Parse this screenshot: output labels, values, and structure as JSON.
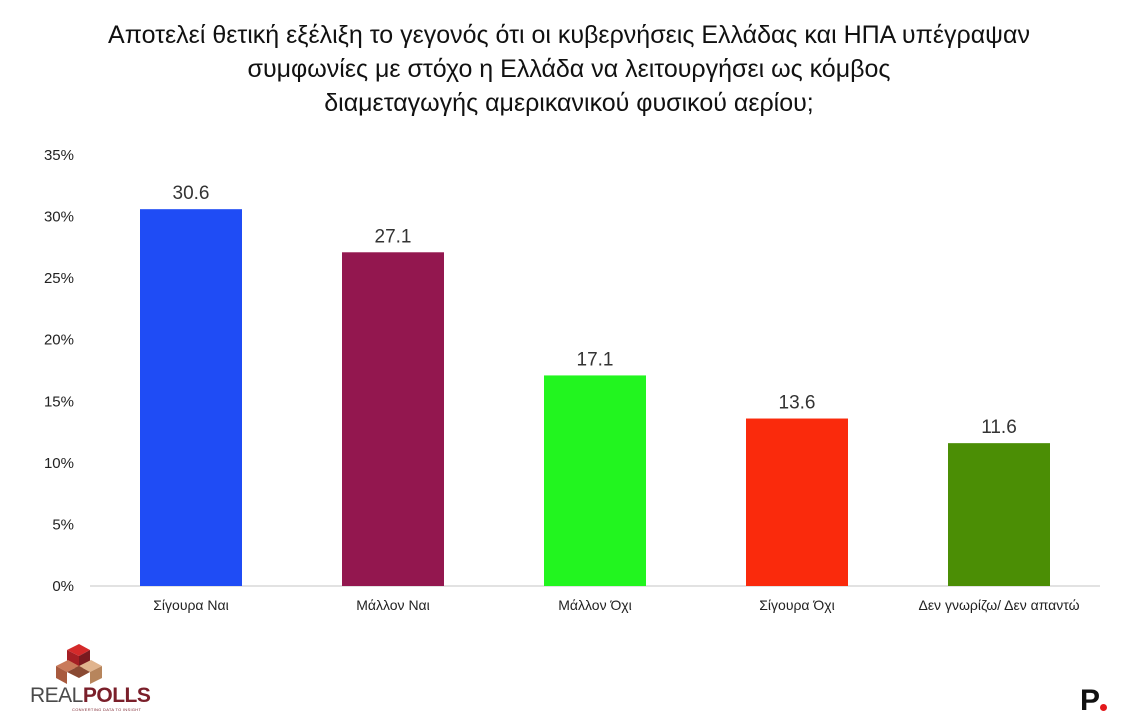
{
  "title_lines": [
    "Αποτελεί θετική εξέλιξη το γεγονός ότι οι κυβερνήσεις Ελλάδας και ΗΠΑ υπέγραψαν",
    "συμφωνίες με στόχο η Ελλάδα να λειτουργήσει ως κόμβος",
    "διαμεταγωγής αμερικανικού φυσικού αερίου;"
  ],
  "chart_data": {
    "type": "bar",
    "title": "Αποτελεί θετική εξέλιξη το γεγονός ότι οι κυβερνήσεις Ελλάδας και ΗΠΑ υπέγραψαν συμφωνίες με στόχο η Ελλάδα να λειτουργήσει ως κόμβος διαμεταγωγής αμερικανικού φυσικού αερίου;",
    "categories": [
      "Σίγουρα Ναι",
      "Μάλλον Ναι",
      "Μάλλον Όχι",
      "Σίγουρα Όχι",
      "Δεν γνωρίζω/ Δεν απαντώ"
    ],
    "values": [
      30.6,
      27.1,
      17.1,
      13.6,
      11.6
    ],
    "value_labels": [
      "30.6",
      "27.1",
      "17.1",
      "13.6",
      "11.6"
    ],
    "colors": [
      "#1f4cf5",
      "#93174f",
      "#22f51f",
      "#fa2a0c",
      "#4b8e05"
    ],
    "y_ticks": [
      0,
      5,
      10,
      15,
      20,
      25,
      30,
      35
    ],
    "y_tick_labels": [
      "0%",
      "5%",
      "10%",
      "15%",
      "20%",
      "25%",
      "30%",
      "35%"
    ],
    "ylim": [
      0,
      35
    ],
    "xlabel": "",
    "ylabel": "",
    "grid": false,
    "legend": "none"
  },
  "branding": {
    "logo_prefix": "REAL",
    "logo_suffix": "POLLS",
    "logo_tagline": "CONVERTING DATA TO INSIGHT",
    "publisher_mark": "P",
    "accent_color": "#e3181b"
  }
}
